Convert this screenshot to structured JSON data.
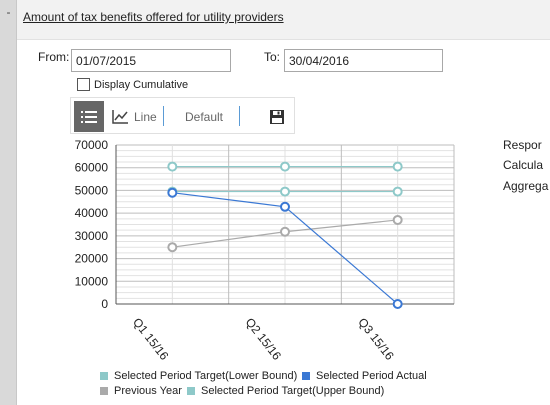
{
  "panel": {
    "collapse_glyph": "-",
    "title": "Amount of tax benefits offered for utility providers"
  },
  "filters": {
    "from_label": "From:",
    "from_value": "01/07/2015",
    "to_label": "To:",
    "to_value": "30/04/2016",
    "cumulative_label": "Display Cumulative",
    "cumulative_checked": false
  },
  "toolbar": {
    "list_icon": "list-icon",
    "line_label": "Line",
    "line_icon": "line-chart-icon",
    "default_label": "Default",
    "save_icon": "save-icon"
  },
  "side_labels": [
    "Respor",
    "Calcula",
    "Aggrega"
  ],
  "chart_data": {
    "type": "line",
    "categories": [
      "Q1 15/16",
      "Q2 15/16",
      "Q3 15/16"
    ],
    "ylim": [
      0,
      70000
    ],
    "yticks": [
      "70000",
      "60000",
      "50000",
      "40000",
      "30000",
      "20000",
      "10000",
      "0"
    ],
    "grid": true,
    "legend_position": "bottom",
    "series": [
      {
        "name": "Selected Period Target(Upper Bound)",
        "color": "#8ec9c9",
        "values": [
          60500,
          60500,
          60500
        ]
      },
      {
        "name": "Selected Period Target(Lower Bound)",
        "color": "#8ec9c9",
        "values": [
          49500,
          49500,
          49500
        ]
      },
      {
        "name": "Previous Year",
        "color": "#aaaaaa",
        "values": [
          25000,
          31800,
          37000
        ]
      },
      {
        "name": "Selected Period Actual",
        "color": "#3a78d4",
        "values": [
          49000,
          42800,
          0
        ]
      }
    ],
    "legend": [
      {
        "label": "Selected Period Target(Lower Bound)",
        "color": "#8ec9c9"
      },
      {
        "label": "Selected Period Actual",
        "color": "#3a78d4"
      },
      {
        "label": "Previous Year",
        "color": "#aaaaaa"
      },
      {
        "label": "Selected Period Target(Upper Bound)",
        "color": "#8ec9c9"
      }
    ]
  }
}
